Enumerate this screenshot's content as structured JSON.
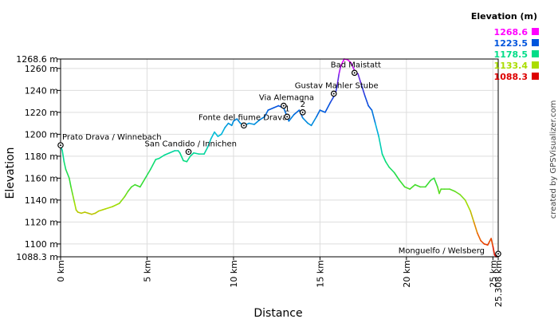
{
  "credit": "created by GPSVisualizer.com",
  "chart_data": {
    "type": "line",
    "xlabel": "Distance",
    "ylabel": "Elevation",
    "xlim": [
      0,
      25.308
    ],
    "ylim": [
      1088.3,
      1268.6
    ],
    "x_ticks": [
      {
        "v": 0,
        "label": "0 km"
      },
      {
        "v": 5,
        "label": "5 km"
      },
      {
        "v": 10,
        "label": "10 km"
      },
      {
        "v": 15,
        "label": "15 km"
      },
      {
        "v": 20,
        "label": "20 km"
      },
      {
        "v": 25,
        "label": "25 km"
      },
      {
        "v": 25.308,
        "label": "25.308 km"
      }
    ],
    "y_ticks": [
      {
        "v": 1088.3,
        "label": "1088.3 m"
      },
      {
        "v": 1100,
        "label": "1100 m"
      },
      {
        "v": 1120,
        "label": "1120 m"
      },
      {
        "v": 1140,
        "label": "1140 m"
      },
      {
        "v": 1160,
        "label": "1160 m"
      },
      {
        "v": 1180,
        "label": "1180 m"
      },
      {
        "v": 1200,
        "label": "1200 m"
      },
      {
        "v": 1220,
        "label": "1220 m"
      },
      {
        "v": 1240,
        "label": "1240 m"
      },
      {
        "v": 1260,
        "label": "1260 m"
      },
      {
        "v": 1268.6,
        "label": "1268.6 m"
      }
    ],
    "legend": {
      "title": "Elevation (m)",
      "entries": [
        {
          "label": "1268.6",
          "color": "#ff00ff"
        },
        {
          "label": "1223.5",
          "color": "#0055dd"
        },
        {
          "label": "1178.5",
          "color": "#00dd88"
        },
        {
          "label": "1133.4",
          "color": "#aadd00"
        },
        {
          "label": "1088.3",
          "color": "#dd0000"
        }
      ]
    },
    "profile": [
      [
        0,
        1190
      ],
      [
        0.1,
        1185
      ],
      [
        0.2,
        1175
      ],
      [
        0.3,
        1168
      ],
      [
        0.5,
        1160
      ],
      [
        0.6,
        1152
      ],
      [
        0.7,
        1145
      ],
      [
        0.8,
        1138
      ],
      [
        0.9,
        1131
      ],
      [
        1.0,
        1129
      ],
      [
        1.2,
        1128
      ],
      [
        1.4,
        1129
      ],
      [
        1.6,
        1128
      ],
      [
        1.8,
        1127
      ],
      [
        2.0,
        1128
      ],
      [
        2.2,
        1130
      ],
      [
        2.6,
        1132
      ],
      [
        3.0,
        1134
      ],
      [
        3.4,
        1137
      ],
      [
        3.7,
        1143
      ],
      [
        3.9,
        1148
      ],
      [
        4.1,
        1152
      ],
      [
        4.3,
        1154
      ],
      [
        4.6,
        1152
      ],
      [
        4.9,
        1160
      ],
      [
        5.2,
        1168
      ],
      [
        5.5,
        1177
      ],
      [
        5.7,
        1178
      ],
      [
        6.0,
        1181
      ],
      [
        6.3,
        1183
      ],
      [
        6.6,
        1185
      ],
      [
        6.8,
        1185
      ],
      [
        6.9,
        1183
      ],
      [
        7.1,
        1176
      ],
      [
        7.3,
        1175
      ],
      [
        7.5,
        1180
      ],
      [
        7.7,
        1183
      ],
      [
        8.0,
        1182
      ],
      [
        8.3,
        1182
      ],
      [
        8.5,
        1188
      ],
      [
        8.7,
        1196
      ],
      [
        8.9,
        1202
      ],
      [
        9.1,
        1198
      ],
      [
        9.3,
        1200
      ],
      [
        9.5,
        1206
      ],
      [
        9.7,
        1210
      ],
      [
        9.9,
        1208
      ],
      [
        10.0,
        1212
      ],
      [
        10.2,
        1214
      ],
      [
        10.4,
        1210
      ],
      [
        10.6,
        1208
      ],
      [
        10.9,
        1210
      ],
      [
        11.2,
        1209
      ],
      [
        11.5,
        1213
      ],
      [
        11.8,
        1216
      ],
      [
        12.0,
        1222
      ],
      [
        12.3,
        1224
      ],
      [
        12.6,
        1226
      ],
      [
        12.9,
        1224
      ],
      [
        13.2,
        1212
      ],
      [
        13.5,
        1218
      ],
      [
        13.8,
        1222
      ],
      [
        14.0,
        1215
      ],
      [
        14.3,
        1210
      ],
      [
        14.5,
        1208
      ],
      [
        14.8,
        1216
      ],
      [
        15.0,
        1222
      ],
      [
        15.3,
        1220
      ],
      [
        15.6,
        1229
      ],
      [
        15.9,
        1237
      ],
      [
        16.0,
        1245
      ],
      [
        16.1,
        1255
      ],
      [
        16.2,
        1262
      ],
      [
        16.4,
        1268.6
      ],
      [
        16.6,
        1268
      ],
      [
        16.8,
        1265
      ],
      [
        17.0,
        1258
      ],
      [
        17.2,
        1255
      ],
      [
        17.4,
        1245
      ],
      [
        17.6,
        1235
      ],
      [
        17.8,
        1226
      ],
      [
        18.0,
        1222
      ],
      [
        18.2,
        1210
      ],
      [
        18.4,
        1198
      ],
      [
        18.6,
        1182
      ],
      [
        18.8,
        1175
      ],
      [
        19.0,
        1170
      ],
      [
        19.3,
        1165
      ],
      [
        19.6,
        1158
      ],
      [
        19.9,
        1152
      ],
      [
        20.2,
        1150
      ],
      [
        20.5,
        1154
      ],
      [
        20.8,
        1152
      ],
      [
        21.1,
        1152
      ],
      [
        21.4,
        1158
      ],
      [
        21.6,
        1160
      ],
      [
        21.8,
        1152
      ],
      [
        21.9,
        1146
      ],
      [
        22.0,
        1150
      ],
      [
        22.2,
        1150
      ],
      [
        22.5,
        1150
      ],
      [
        22.8,
        1148
      ],
      [
        23.1,
        1145
      ],
      [
        23.4,
        1140
      ],
      [
        23.7,
        1130
      ],
      [
        23.9,
        1120
      ],
      [
        24.1,
        1110
      ],
      [
        24.3,
        1103
      ],
      [
        24.5,
        1100
      ],
      [
        24.7,
        1099
      ],
      [
        24.8,
        1102
      ],
      [
        24.9,
        1105
      ],
      [
        25.0,
        1098
      ],
      [
        25.1,
        1090
      ],
      [
        25.2,
        1088.3
      ],
      [
        25.308,
        1091
      ]
    ],
    "waypoints": [
      {
        "name": "Prato Drava / Winnebach",
        "x": 0.0,
        "y": 1190,
        "anchor": "start",
        "dx": 2,
        "dy": -7
      },
      {
        "name": "San Candido / Innichen",
        "x": 7.4,
        "y": 1184,
        "anchor": "start",
        "dx": -55,
        "dy": -7
      },
      {
        "name": "Fonte del fiume Drava",
        "x": 10.6,
        "y": 1208,
        "anchor": "start",
        "dx": -57,
        "dy": -7
      },
      {
        "name": "Via Alemagna",
        "x": 12.9,
        "y": 1226,
        "anchor": "start",
        "dx": -31,
        "dy": -7
      },
      {
        "name": "1",
        "x": 13.1,
        "y": 1216,
        "anchor": "start",
        "dx": -3,
        "dy": -7
      },
      {
        "name": "2",
        "x": 14.0,
        "y": 1220,
        "anchor": "start",
        "dx": -3,
        "dy": -7
      },
      {
        "name": "Gustav Mahler Stube",
        "x": 15.8,
        "y": 1237,
        "anchor": "start",
        "dx": -49,
        "dy": -7
      },
      {
        "name": "Bad Maistatt",
        "x": 17.0,
        "y": 1256,
        "anchor": "start",
        "dx": -30,
        "dy": -7
      },
      {
        "name": "Monguelfo / Welsberg",
        "x": 25.308,
        "y": 1091,
        "anchor": "end",
        "dx": -17,
        "dy": -1
      }
    ]
  }
}
